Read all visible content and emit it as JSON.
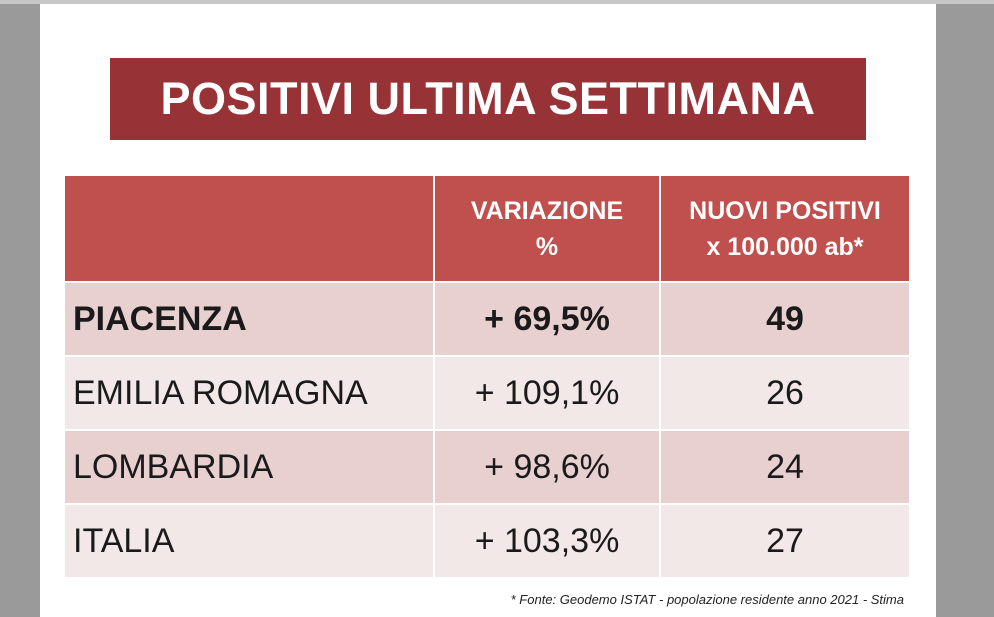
{
  "title": "POSITIVI ULTIMA SETTIMANA",
  "table": {
    "headers": [
      "",
      "VARIAZIONE\n%",
      "NUOVI POSITIVI\nx 100.000 ab*"
    ],
    "rows": [
      {
        "region": "PIACENZA",
        "variation": "+ 69,5%",
        "new_positives": "49"
      },
      {
        "region": "EMILIA ROMAGNA",
        "variation": "+ 109,1%",
        "new_positives": "26"
      },
      {
        "region": "LOMBARDIA",
        "variation": "+ 98,6%",
        "new_positives": "24"
      },
      {
        "region": "ITALIA",
        "variation": "+ 103,3%",
        "new_positives": "27"
      }
    ]
  },
  "footnote": "* Fonte: Geodemo ISTAT - popolazione residente anno 2021 - Stima",
  "colors": {
    "title_bg": "#973337",
    "header_bg": "#c0504d",
    "row_dark": "#e8d0d1",
    "row_light": "#f3e8e8"
  }
}
